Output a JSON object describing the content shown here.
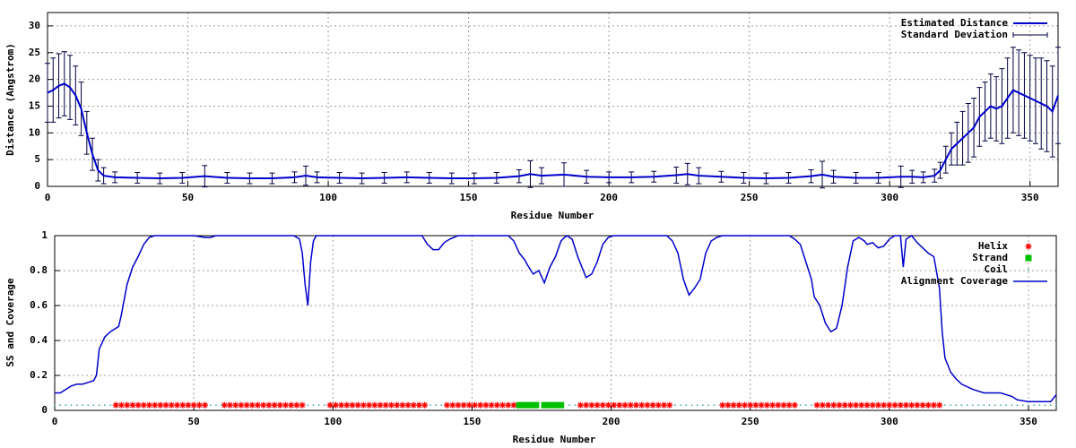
{
  "chart_data": [
    {
      "type": "errorbar",
      "xlabel": "Residue Number",
      "ylabel": "Distance (Angstrom)",
      "xlim": [
        0,
        360
      ],
      "xticks": [
        0,
        50,
        100,
        150,
        200,
        250,
        300,
        350
      ],
      "ylim": [
        0,
        32.5
      ],
      "yticks": [
        0,
        5,
        10,
        15,
        20,
        25,
        30
      ],
      "grid": true,
      "legend": "top right",
      "x": [
        0,
        2,
        4,
        6,
        8,
        10,
        12,
        14,
        16,
        18,
        20,
        24,
        32,
        40,
        48,
        56,
        64,
        72,
        80,
        88,
        92,
        96,
        104,
        112,
        120,
        128,
        136,
        144,
        152,
        160,
        168,
        172,
        176,
        184,
        192,
        200,
        208,
        216,
        224,
        228,
        232,
        240,
        248,
        256,
        264,
        272,
        276,
        280,
        288,
        296,
        304,
        308,
        312,
        316,
        318,
        320,
        322,
        324,
        326,
        328,
        330,
        332,
        334,
        336,
        338,
        340,
        342,
        344,
        346,
        348,
        350,
        352,
        354,
        356,
        358,
        360
      ],
      "series": [
        {
          "name": "Estimated Distance",
          "color": "#0000cc",
          "values": [
            17.5,
            18,
            18.8,
            19.2,
            18.5,
            17,
            14.5,
            10,
            6,
            3,
            2,
            1.7,
            1.6,
            1.5,
            1.6,
            1.9,
            1.6,
            1.5,
            1.5,
            1.7,
            2,
            1.7,
            1.6,
            1.5,
            1.6,
            1.7,
            1.6,
            1.5,
            1.5,
            1.6,
            1.9,
            2.3,
            2,
            2.2,
            1.8,
            1.7,
            1.7,
            1.8,
            2.1,
            2.3,
            2,
            1.8,
            1.6,
            1.5,
            1.6,
            1.9,
            2.2,
            1.8,
            1.6,
            1.6,
            1.8,
            1.8,
            1.7,
            2,
            3,
            5,
            7,
            8,
            9,
            10,
            11,
            13,
            14,
            15,
            14.5,
            15,
            16.5,
            18,
            17.5,
            17,
            16.5,
            16,
            15.5,
            15,
            14,
            17
          ]
        },
        {
          "name": "Standard Deviation",
          "color": "#000040",
          "values": [
            5.5,
            6,
            6,
            6,
            6,
            5.5,
            5,
            4,
            3,
            2,
            1.5,
            1,
            1,
            1,
            1,
            2,
            1,
            1,
            1,
            1,
            1.8,
            1,
            1,
            1,
            1,
            1,
            1,
            1,
            1,
            1,
            1.2,
            2.5,
            1.5,
            2.2,
            1.2,
            1,
            1,
            1,
            1.5,
            2,
            1.5,
            1,
            1,
            1,
            1,
            1.2,
            2.5,
            1.2,
            1,
            1,
            2,
            1.2,
            1,
            1.2,
            1.5,
            2.5,
            3,
            4,
            5,
            5.5,
            5.5,
            5.5,
            5.5,
            6,
            6,
            7,
            7.5,
            8,
            8,
            8,
            8,
            8,
            8.5,
            8.5,
            8.5,
            9
          ]
        }
      ]
    },
    {
      "type": "mixed",
      "xlabel": "Residue Number",
      "ylabel": "SS and Coverage",
      "xlim": [
        0,
        360
      ],
      "xticks": [
        0,
        50,
        100,
        150,
        200,
        250,
        300,
        350
      ],
      "ylim": [
        0,
        1
      ],
      "yticks": [
        0,
        0.2,
        0.4,
        0.6,
        0.8,
        1
      ],
      "grid": true,
      "legend": "top right",
      "series": [
        {
          "name": "Helix",
          "color": "#ff0000",
          "style": "star",
          "x": [
            22,
            24,
            26,
            28,
            30,
            32,
            34,
            36,
            38,
            40,
            42,
            44,
            46,
            48,
            50,
            52,
            54,
            61,
            63,
            65,
            67,
            69,
            71,
            73,
            75,
            77,
            79,
            81,
            83,
            85,
            87,
            89,
            99,
            101,
            103,
            105,
            107,
            109,
            111,
            113,
            115,
            117,
            119,
            121,
            123,
            125,
            127,
            129,
            131,
            133,
            141,
            143,
            145,
            147,
            149,
            151,
            153,
            155,
            157,
            159,
            161,
            163,
            165,
            189,
            191,
            193,
            195,
            197,
            199,
            201,
            203,
            205,
            207,
            209,
            211,
            213,
            215,
            217,
            219,
            221,
            240,
            242,
            244,
            246,
            248,
            250,
            252,
            254,
            256,
            258,
            260,
            262,
            264,
            266,
            274,
            276,
            278,
            280,
            282,
            284,
            286,
            288,
            290,
            292,
            294,
            296,
            298,
            300,
            302,
            304,
            306,
            308,
            310,
            312,
            314,
            316,
            318
          ],
          "values": [
            0.03,
            0.03,
            0.03,
            0.03,
            0.03,
            0.03,
            0.03,
            0.03,
            0.03,
            0.03,
            0.03,
            0.03,
            0.03,
            0.03,
            0.03,
            0.03,
            0.03,
            0.03,
            0.03,
            0.03,
            0.03,
            0.03,
            0.03,
            0.03,
            0.03,
            0.03,
            0.03,
            0.03,
            0.03,
            0.03,
            0.03,
            0.03,
            0.03,
            0.03,
            0.03,
            0.03,
            0.03,
            0.03,
            0.03,
            0.03,
            0.03,
            0.03,
            0.03,
            0.03,
            0.03,
            0.03,
            0.03,
            0.03,
            0.03,
            0.03,
            0.03,
            0.03,
            0.03,
            0.03,
            0.03,
            0.03,
            0.03,
            0.03,
            0.03,
            0.03,
            0.03,
            0.03,
            0.03,
            0.03,
            0.03,
            0.03,
            0.03,
            0.03,
            0.03,
            0.03,
            0.03,
            0.03,
            0.03,
            0.03,
            0.03,
            0.03,
            0.03,
            0.03,
            0.03,
            0.03,
            0.03,
            0.03,
            0.03,
            0.03,
            0.03,
            0.03,
            0.03,
            0.03,
            0.03,
            0.03,
            0.03,
            0.03,
            0.03,
            0.03,
            0.03,
            0.03,
            0.03,
            0.03,
            0.03,
            0.03,
            0.03,
            0.03,
            0.03,
            0.03,
            0.03,
            0.03,
            0.03,
            0.03,
            0.03,
            0.03,
            0.03,
            0.03,
            0.03,
            0.03,
            0.03,
            0.03,
            0.03
          ]
        },
        {
          "name": "Strand",
          "color": "#00c000",
          "style": "square",
          "x": [
            167,
            169,
            171,
            173,
            176,
            178,
            180,
            182
          ],
          "values": [
            0.03,
            0.03,
            0.03,
            0.03,
            0.03,
            0.03,
            0.03,
            0.03
          ]
        },
        {
          "name": "Coil",
          "color": "#2090a0",
          "style": "dot",
          "x": [
            0,
            2,
            4,
            6,
            8,
            10,
            12,
            14,
            16,
            18,
            20,
            56,
            58,
            60,
            91,
            93,
            95,
            97,
            135,
            137,
            139,
            185,
            187,
            223,
            225,
            227,
            229,
            231,
            233,
            235,
            237,
            268,
            270,
            272,
            320,
            322,
            324,
            326,
            328,
            330,
            332,
            334,
            336,
            338,
            340,
            342,
            344,
            346,
            348,
            350,
            352,
            354,
            356,
            358,
            360
          ],
          "values": [
            0.03,
            0.03,
            0.03,
            0.03,
            0.03,
            0.03,
            0.03,
            0.03,
            0.03,
            0.03,
            0.03,
            0.03,
            0.03,
            0.03,
            0.03,
            0.03,
            0.03,
            0.03,
            0.03,
            0.03,
            0.03,
            0.03,
            0.03,
            0.03,
            0.03,
            0.03,
            0.03,
            0.03,
            0.03,
            0.03,
            0.03,
            0.03,
            0.03,
            0.03,
            0.03,
            0.03,
            0.03,
            0.03,
            0.03,
            0.03,
            0.03,
            0.03,
            0.03,
            0.03,
            0.03,
            0.03,
            0.03,
            0.03,
            0.03,
            0.03,
            0.03,
            0.03,
            0.03,
            0.03,
            0.03
          ]
        },
        {
          "name": "Alignment Coverage",
          "color": "#0000cc",
          "style": "line",
          "x": [
            0,
            2,
            4,
            6,
            8,
            10,
            12,
            14,
            15,
            16,
            18,
            20,
            22,
            23,
            24,
            26,
            28,
            30,
            32,
            34,
            36,
            50,
            54,
            56,
            58,
            86,
            88,
            89,
            90,
            91,
            92,
            93,
            94,
            132,
            134,
            136,
            138,
            140,
            142,
            145,
            163,
            165,
            167,
            169,
            170,
            172,
            174,
            176,
            178,
            180,
            182,
            184,
            186,
            188,
            190,
            191,
            193,
            195,
            197,
            199,
            201,
            220,
            222,
            224,
            226,
            228,
            230,
            232,
            234,
            236,
            238,
            240,
            264,
            266,
            268,
            270,
            272,
            273,
            275,
            277,
            279,
            281,
            283,
            285,
            287,
            289,
            291,
            292,
            294,
            296,
            298,
            300,
            302,
            304,
            305,
            306,
            308,
            310,
            312,
            314,
            316,
            318,
            319,
            320,
            322,
            324,
            326,
            330,
            334,
            340,
            344,
            346,
            350,
            358,
            360
          ],
          "values": [
            0.1,
            0.1,
            0.12,
            0.14,
            0.15,
            0.15,
            0.16,
            0.17,
            0.2,
            0.35,
            0.42,
            0.45,
            0.47,
            0.48,
            0.55,
            0.72,
            0.82,
            0.88,
            0.95,
            0.99,
            1,
            1,
            0.99,
            0.99,
            1,
            1,
            0.98,
            0.9,
            0.72,
            0.6,
            0.85,
            0.97,
            1,
            1,
            0.95,
            0.92,
            0.92,
            0.96,
            0.98,
            1,
            1,
            0.97,
            0.9,
            0.86,
            0.83,
            0.78,
            0.8,
            0.73,
            0.82,
            0.88,
            0.97,
            1,
            0.98,
            0.88,
            0.8,
            0.76,
            0.78,
            0.85,
            0.95,
            0.99,
            1,
            1,
            0.97,
            0.9,
            0.75,
            0.66,
            0.7,
            0.75,
            0.9,
            0.97,
            0.99,
            1,
            1,
            0.98,
            0.95,
            0.85,
            0.75,
            0.65,
            0.6,
            0.5,
            0.45,
            0.47,
            0.6,
            0.82,
            0.97,
            0.99,
            0.97,
            0.95,
            0.96,
            0.93,
            0.94,
            0.98,
            1,
            1,
            0.82,
            0.98,
            1,
            0.96,
            0.93,
            0.9,
            0.88,
            0.7,
            0.45,
            0.3,
            0.22,
            0.18,
            0.15,
            0.12,
            0.1,
            0.1,
            0.08,
            0.06,
            0.05,
            0.05,
            0.09
          ]
        }
      ]
    }
  ]
}
